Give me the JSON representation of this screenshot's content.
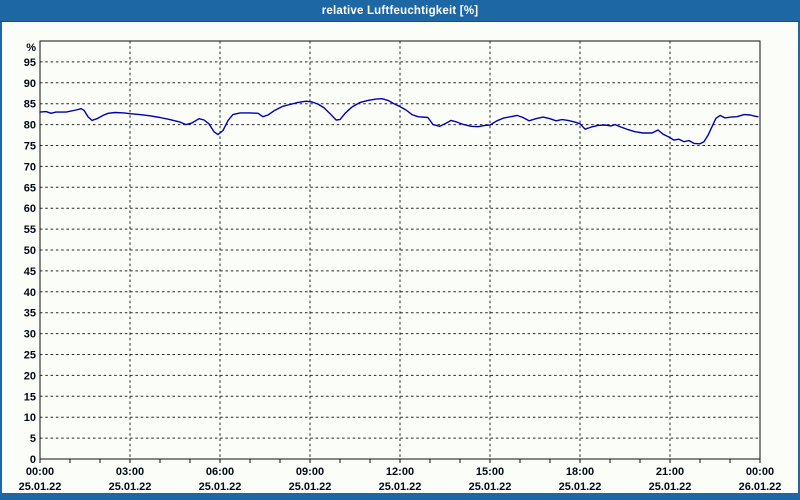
{
  "window": {
    "title": "relative Luftfeuchtigkeit [%]",
    "title_bar_color": "#1d68a4",
    "canvas_background": "#fbfdf9"
  },
  "chart_data": {
    "type": "line",
    "title": "relative Luftfeuchtigkeit [%]",
    "ylabel": "%",
    "y_unit_label": "%",
    "ylim": [
      0,
      100
    ],
    "y_tick_step": 5,
    "y_ticks": [
      0,
      5,
      10,
      15,
      20,
      25,
      30,
      35,
      40,
      45,
      50,
      55,
      60,
      65,
      70,
      75,
      80,
      85,
      90,
      95
    ],
    "x_range_hours": [
      0,
      24
    ],
    "x_minor_tick_hours": 1,
    "x_major_ticks": [
      {
        "hour": 0,
        "time": "00:00",
        "date": "25.01.22"
      },
      {
        "hour": 3,
        "time": "03:00",
        "date": "25.01.22"
      },
      {
        "hour": 6,
        "time": "06:00",
        "date": "25.01.22"
      },
      {
        "hour": 9,
        "time": "09:00",
        "date": "25.01.22"
      },
      {
        "hour": 12,
        "time": "12:00",
        "date": "25.01.22"
      },
      {
        "hour": 15,
        "time": "15:00",
        "date": "25.01.22"
      },
      {
        "hour": 18,
        "time": "18:00",
        "date": "25.01.22"
      },
      {
        "hour": 21,
        "time": "21:00",
        "date": "25.01.22"
      },
      {
        "hour": 24,
        "time": "00:00",
        "date": "26.01.22"
      }
    ],
    "grid": "dashed",
    "legend": "none",
    "line_color": "#0000b4",
    "grid_color": "#262626",
    "series": [
      {
        "name": "relative Luftfeuchtigkeit",
        "points": [
          [
            0.0,
            83.0
          ],
          [
            0.2,
            83.1
          ],
          [
            0.37,
            82.7
          ],
          [
            0.53,
            83.0
          ],
          [
            0.87,
            83.0
          ],
          [
            1.2,
            83.5
          ],
          [
            1.37,
            83.8
          ],
          [
            1.47,
            83.4
          ],
          [
            1.6,
            81.9
          ],
          [
            1.73,
            81.0
          ],
          [
            1.9,
            81.4
          ],
          [
            2.1,
            82.2
          ],
          [
            2.27,
            82.7
          ],
          [
            2.5,
            82.9
          ],
          [
            2.8,
            82.8
          ],
          [
            3.0,
            82.6
          ],
          [
            3.33,
            82.4
          ],
          [
            3.67,
            82.1
          ],
          [
            4.0,
            81.7
          ],
          [
            4.33,
            81.2
          ],
          [
            4.67,
            80.6
          ],
          [
            4.87,
            80.0
          ],
          [
            5.07,
            80.4
          ],
          [
            5.3,
            81.4
          ],
          [
            5.47,
            81.1
          ],
          [
            5.63,
            80.2
          ],
          [
            5.8,
            78.3
          ],
          [
            5.93,
            77.6
          ],
          [
            6.1,
            78.6
          ],
          [
            6.27,
            81.0
          ],
          [
            6.43,
            82.4
          ],
          [
            6.67,
            82.8
          ],
          [
            7.0,
            82.8
          ],
          [
            7.27,
            82.7
          ],
          [
            7.43,
            81.9
          ],
          [
            7.6,
            82.3
          ],
          [
            7.8,
            83.3
          ],
          [
            8.07,
            84.3
          ],
          [
            8.33,
            84.8
          ],
          [
            8.6,
            85.3
          ],
          [
            8.87,
            85.6
          ],
          [
            9.07,
            85.4
          ],
          [
            9.27,
            84.9
          ],
          [
            9.47,
            84.0
          ],
          [
            9.67,
            82.6
          ],
          [
            9.87,
            81.1
          ],
          [
            10.0,
            81.2
          ],
          [
            10.17,
            82.7
          ],
          [
            10.4,
            84.2
          ],
          [
            10.67,
            85.3
          ],
          [
            10.93,
            85.8
          ],
          [
            11.2,
            86.1
          ],
          [
            11.4,
            86.2
          ],
          [
            11.6,
            85.8
          ],
          [
            11.8,
            85.0
          ],
          [
            12.0,
            84.3
          ],
          [
            12.2,
            83.5
          ],
          [
            12.4,
            82.4
          ],
          [
            12.6,
            81.9
          ],
          [
            12.93,
            81.7
          ],
          [
            13.1,
            80.0
          ],
          [
            13.33,
            79.6
          ],
          [
            13.53,
            80.3
          ],
          [
            13.7,
            81.0
          ],
          [
            13.9,
            80.6
          ],
          [
            14.13,
            80.0
          ],
          [
            14.37,
            79.6
          ],
          [
            14.6,
            79.5
          ],
          [
            14.83,
            79.8
          ],
          [
            15.0,
            79.9
          ],
          [
            15.23,
            80.9
          ],
          [
            15.47,
            81.6
          ],
          [
            15.7,
            81.9
          ],
          [
            15.9,
            82.2
          ],
          [
            16.1,
            81.7
          ],
          [
            16.3,
            80.9
          ],
          [
            16.53,
            81.4
          ],
          [
            16.77,
            81.8
          ],
          [
            17.0,
            81.4
          ],
          [
            17.2,
            80.9
          ],
          [
            17.4,
            81.2
          ],
          [
            17.6,
            81.0
          ],
          [
            17.83,
            80.6
          ],
          [
            18.0,
            80.2
          ],
          [
            18.17,
            78.9
          ],
          [
            18.37,
            79.4
          ],
          [
            18.6,
            79.8
          ],
          [
            18.83,
            79.9
          ],
          [
            19.03,
            79.7
          ],
          [
            19.17,
            80.0
          ],
          [
            19.37,
            79.4
          ],
          [
            19.6,
            78.8
          ],
          [
            19.83,
            78.3
          ],
          [
            20.1,
            78.0
          ],
          [
            20.4,
            78.0
          ],
          [
            20.6,
            78.7
          ],
          [
            20.77,
            77.7
          ],
          [
            20.97,
            77.0
          ],
          [
            21.13,
            76.3
          ],
          [
            21.3,
            76.5
          ],
          [
            21.47,
            75.9
          ],
          [
            21.63,
            76.2
          ],
          [
            21.8,
            75.5
          ],
          [
            22.0,
            75.4
          ],
          [
            22.13,
            75.9
          ],
          [
            22.27,
            77.5
          ],
          [
            22.4,
            79.5
          ],
          [
            22.53,
            81.5
          ],
          [
            22.67,
            82.2
          ],
          [
            22.83,
            81.6
          ],
          [
            23.03,
            81.8
          ],
          [
            23.23,
            81.9
          ],
          [
            23.47,
            82.4
          ],
          [
            23.67,
            82.3
          ],
          [
            23.83,
            82.0
          ],
          [
            23.93,
            81.9
          ]
        ]
      }
    ]
  }
}
